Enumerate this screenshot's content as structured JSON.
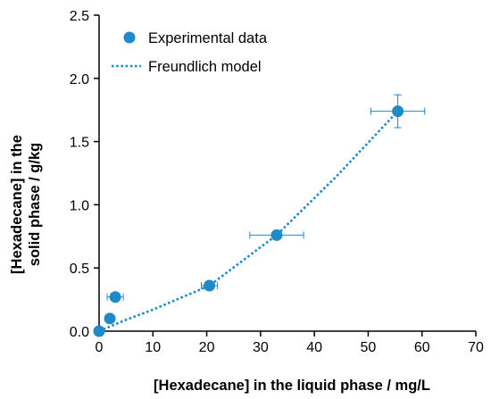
{
  "chart_data": {
    "type": "scatter",
    "title": "",
    "xlabel": "[Hexadecane] in the liquid phase / mg/L",
    "ylabel_lines": [
      "[Hexadecane] in the",
      "solid phase / g/kg"
    ],
    "xlim": [
      0,
      70
    ],
    "ylim": [
      0,
      2.5
    ],
    "xticks": [
      0,
      10,
      20,
      30,
      40,
      50,
      60,
      70
    ],
    "yticks": [
      0.0,
      0.5,
      1.0,
      1.5,
      2.0,
      2.5
    ],
    "ytick_labels": [
      "0.0",
      "0.5",
      "1.0",
      "1.5",
      "2.0",
      "2.5"
    ],
    "grid": false,
    "legend_position": "top-left",
    "color": "#1f8ac9",
    "series": [
      {
        "name": "Experimental data",
        "kind": "markers",
        "x": [
          0,
          2,
          3,
          20.5,
          33,
          55.5
        ],
        "y": [
          0,
          0.1,
          0.27,
          0.36,
          0.76,
          1.74
        ],
        "x_err": [
          0,
          0,
          1.5,
          1.5,
          5,
          5
        ],
        "y_err": [
          0,
          0,
          0,
          0,
          0,
          0.13
        ]
      },
      {
        "name": "Freundlich model",
        "kind": "dotted-line",
        "x": [
          0,
          5,
          10,
          20.5,
          33,
          44,
          55.5
        ],
        "y": [
          0,
          0.09,
          0.17,
          0.36,
          0.76,
          1.22,
          1.74
        ]
      }
    ]
  }
}
